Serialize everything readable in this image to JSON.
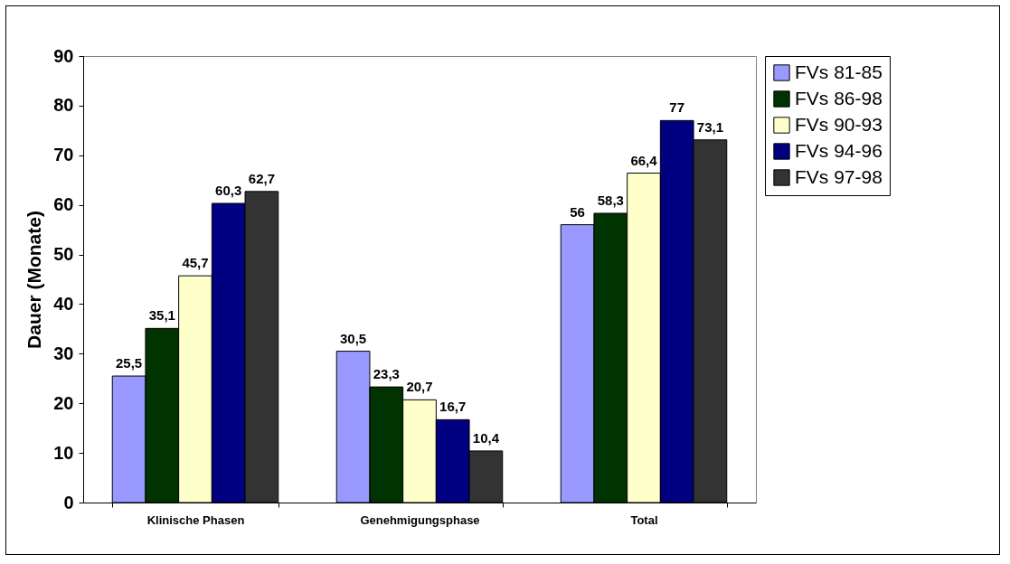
{
  "chart_data": {
    "type": "bar",
    "ylabel": "Dauer (Monate)",
    "categories": [
      "Klinische Phasen",
      "Genehmigungsphase",
      "Total"
    ],
    "series": [
      {
        "name": "FVs 81-85",
        "color": "#9999ff",
        "values": [
          25.5,
          30.5,
          56
        ],
        "value_labels": [
          "25,5",
          "30,5",
          "56"
        ]
      },
      {
        "name": "FVs 86-98",
        "color": "#003300",
        "values": [
          35.1,
          23.3,
          58.3
        ],
        "value_labels": [
          "35,1",
          "23,3",
          "58,3"
        ]
      },
      {
        "name": "FVs 90-93",
        "color": "#ffffcc",
        "values": [
          45.7,
          20.7,
          66.4
        ],
        "value_labels": [
          "45,7",
          "20,7",
          "66,4"
        ]
      },
      {
        "name": "FVs 94-96",
        "color": "#000080",
        "values": [
          60.3,
          16.7,
          77
        ],
        "value_labels": [
          "60,3",
          "16,7",
          "77"
        ]
      },
      {
        "name": "FVs 97-98",
        "color": "#333333",
        "values": [
          62.7,
          10.4,
          73.1
        ],
        "value_labels": [
          "62,7",
          "10,4",
          "73,1"
        ]
      }
    ],
    "ylim": [
      0,
      90
    ],
    "yticks": [
      0,
      10,
      20,
      30,
      40,
      50,
      60,
      70,
      80,
      90
    ],
    "grid": false,
    "legend": "right"
  }
}
